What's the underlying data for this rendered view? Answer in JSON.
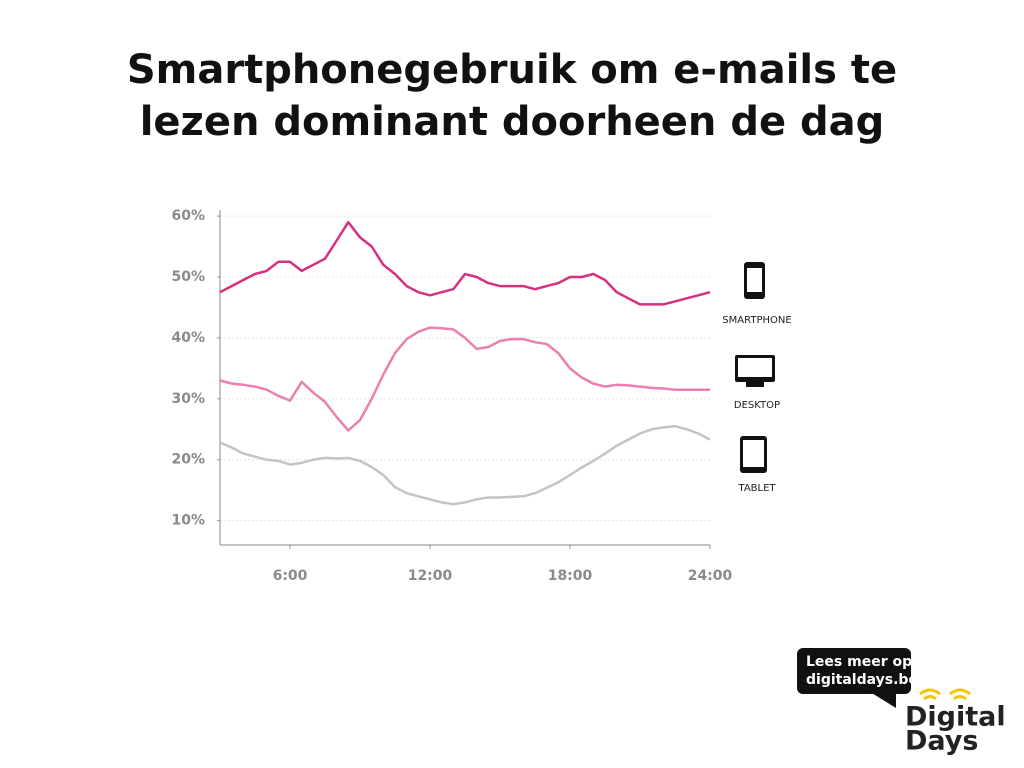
{
  "chart_data": {
    "type": "line",
    "title": "Smartphonegebruik om e-mails te lezen dominant doorheen de dag",
    "x": [
      3,
      3.5,
      4,
      4.5,
      5,
      5.5,
      6,
      6.5,
      7,
      7.5,
      8,
      8.5,
      9,
      9.5,
      10,
      10.5,
      11,
      11.5,
      12,
      12.5,
      13,
      13.5,
      14,
      14.5,
      15,
      15.5,
      16,
      16.5,
      17,
      17.5,
      18,
      18.5,
      19,
      19.5,
      20,
      20.5,
      21,
      21.5,
      22,
      22.5,
      23,
      23.5,
      24
    ],
    "series": [
      {
        "name": "SMARTPHONE",
        "color": "#d6307e",
        "values": [
          47.5,
          48.5,
          49.5,
          50.5,
          51,
          52.5,
          52.5,
          51,
          52,
          53,
          56,
          59,
          56.5,
          55,
          52,
          50.5,
          48.5,
          47.5,
          47,
          47.5,
          48,
          50.5,
          50,
          49,
          48.5,
          48.5,
          48.5,
          48,
          48.5,
          49,
          50,
          50,
          50.5,
          49.5,
          47.5,
          46.5,
          45.5,
          45.5,
          45.5,
          46,
          46.5,
          47,
          47.5
        ]
      },
      {
        "name": "DESKTOP",
        "color": "#ec7fb0",
        "values": [
          33,
          32.5,
          32.3,
          32,
          31.5,
          30.5,
          29.7,
          32.8,
          31,
          29.5,
          27,
          24.8,
          26.5,
          30,
          34,
          37.5,
          39.8,
          41,
          41.7,
          41.6,
          41.4,
          40,
          38.2,
          38.5,
          39.5,
          39.8,
          39.8,
          39.3,
          39,
          37.5,
          35,
          33.5,
          32.5,
          32,
          32.3,
          32.2,
          32,
          31.8,
          31.7,
          31.5,
          31.5,
          31.5,
          31.5
        ]
      },
      {
        "name": "TABLET",
        "color": "#c4c4c4",
        "values": [
          22.8,
          22,
          21,
          20.5,
          20,
          19.8,
          19.2,
          19.5,
          20,
          20.3,
          20.2,
          20.3,
          19.8,
          18.8,
          17.5,
          15.5,
          14.5,
          14,
          13.5,
          13,
          12.7,
          13,
          13.5,
          13.8,
          13.8,
          13.9,
          14,
          14.5,
          15.4,
          16.3,
          17.5,
          18.7,
          19.8,
          21,
          22.3,
          23.3,
          24.3,
          25,
          25.3,
          25.5,
          25,
          24.3,
          23.3
        ]
      }
    ],
    "xlim": [
      3,
      24
    ],
    "xticks": [
      {
        "value": 6,
        "label": "6:00"
      },
      {
        "value": 12,
        "label": "12:00"
      },
      {
        "value": 18,
        "label": "18:00"
      },
      {
        "value": 24,
        "label": "24:00"
      }
    ],
    "ylim": [
      6,
      61
    ],
    "yticks": [
      {
        "value": 10,
        "label": "10%"
      },
      {
        "value": 20,
        "label": "20%"
      },
      {
        "value": 30,
        "label": "30%"
      },
      {
        "value": 40,
        "label": "40%"
      },
      {
        "value": 50,
        "label": "50%"
      },
      {
        "value": 60,
        "label": "60%"
      }
    ],
    "grid": true
  },
  "logo": {
    "bubble": [
      "Lees meer op",
      "digitaldays.be"
    ],
    "brand": [
      "Digital",
      "Days"
    ]
  }
}
